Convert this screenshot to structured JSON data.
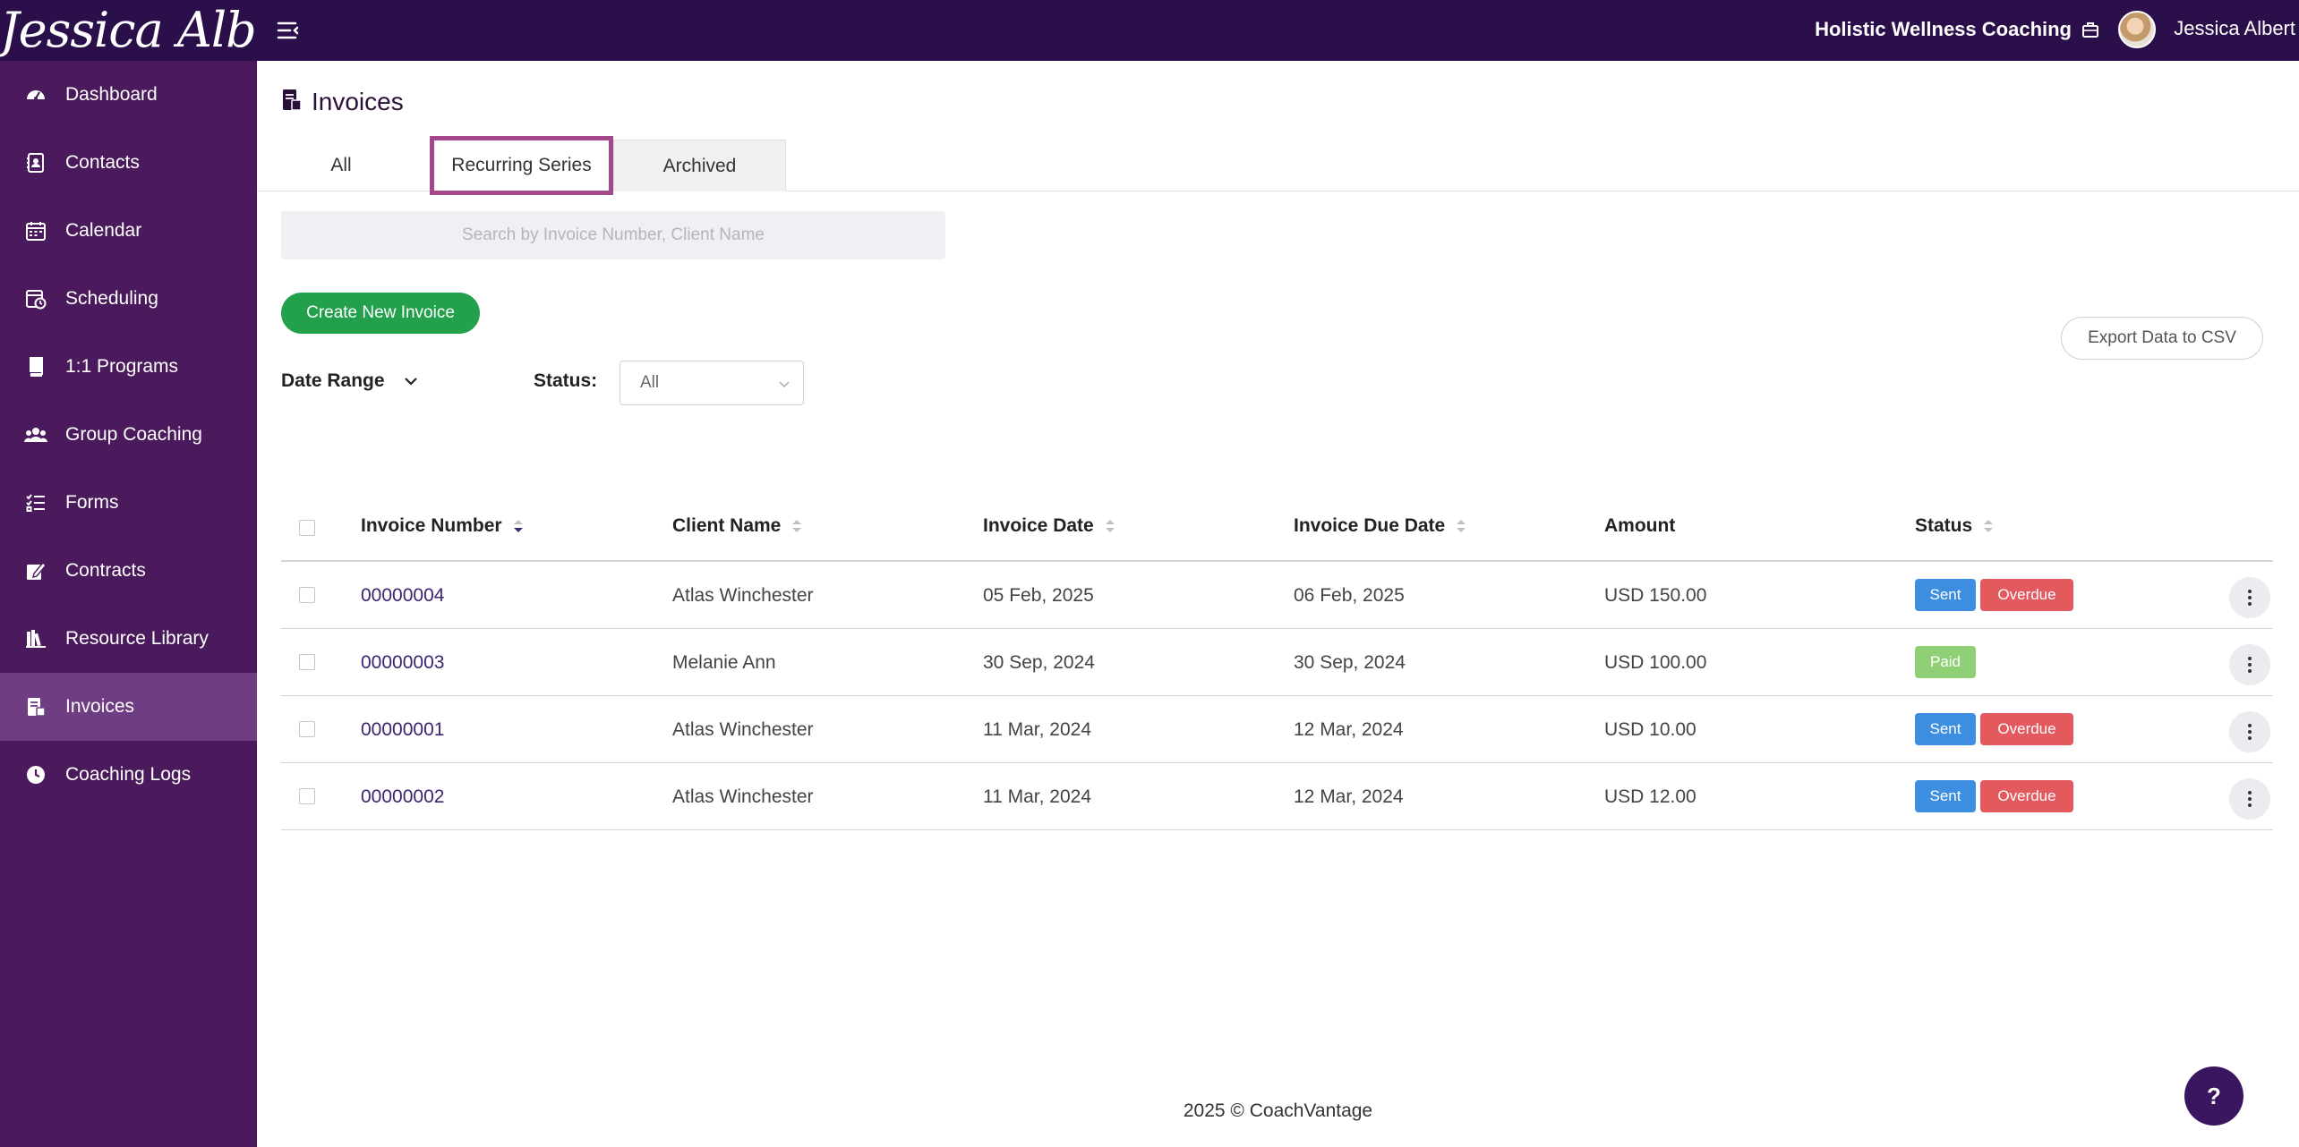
{
  "topbar": {
    "logo_text": "Jessica Albert",
    "business_name": "Holistic Wellness Coaching",
    "user_name": "Jessica Albert"
  },
  "sidebar": {
    "items": [
      {
        "label": "Dashboard",
        "icon": "dashboard-gauge-icon"
      },
      {
        "label": "Contacts",
        "icon": "contact-book-icon"
      },
      {
        "label": "Calendar",
        "icon": "calendar-icon"
      },
      {
        "label": "Scheduling",
        "icon": "scheduling-calendar-clock-icon"
      },
      {
        "label": "1:1 Programs",
        "icon": "book-icon"
      },
      {
        "label": "Group Coaching",
        "icon": "users-group-icon"
      },
      {
        "label": "Forms",
        "icon": "checklist-icon"
      },
      {
        "label": "Contracts",
        "icon": "contract-sign-icon"
      },
      {
        "label": "Resource Library",
        "icon": "library-books-icon"
      },
      {
        "label": "Invoices",
        "icon": "invoice-icon",
        "active": true
      },
      {
        "label": "Coaching Logs",
        "icon": "clock-icon"
      }
    ]
  },
  "page": {
    "title": "Invoices",
    "tabs": {
      "all": "All",
      "recurring": "Recurring Series",
      "archived": "Archived"
    },
    "search_placeholder": "Search by Invoice Number, Client Name",
    "create_button": "Create New Invoice",
    "export_button": "Export Data to CSV",
    "date_range_label": "Date Range",
    "status_label": "Status:",
    "status_value": "All"
  },
  "table": {
    "headers": {
      "invoice_number": "Invoice Number",
      "client_name": "Client Name",
      "invoice_date": "Invoice Date",
      "due_date": "Invoice Due Date",
      "amount": "Amount",
      "status": "Status"
    },
    "rows": [
      {
        "number": "00000004",
        "client": "Atlas Winchester",
        "date": "05 Feb, 2025",
        "due": "06 Feb, 2025",
        "amount": "USD 150.00",
        "badges": [
          "Sent",
          "Overdue"
        ]
      },
      {
        "number": "00000003",
        "client": "Melanie Ann",
        "date": "30 Sep, 2024",
        "due": "30 Sep, 2024",
        "amount": "USD 100.00",
        "badges": [
          "Paid"
        ]
      },
      {
        "number": "00000001",
        "client": "Atlas Winchester",
        "date": "11 Mar, 2024",
        "due": "12 Mar, 2024",
        "amount": "USD 10.00",
        "badges": [
          "Sent",
          "Overdue"
        ]
      },
      {
        "number": "00000002",
        "client": "Atlas Winchester",
        "date": "11 Mar, 2024",
        "due": "12 Mar, 2024",
        "amount": "USD 12.00",
        "badges": [
          "Sent",
          "Overdue"
        ]
      }
    ]
  },
  "footer": {
    "text": "2025 © CoachVantage"
  },
  "help": {
    "label": "?"
  },
  "colors": {
    "topbar": "#2a0f4a",
    "sidebar": "#4a1a5c",
    "sidebar_active": "#6e3d82",
    "accent_green": "#22a04c",
    "sent": "#3d8ee0",
    "overdue": "#e2595e",
    "paid": "#8fd076",
    "tab_highlight": "#a4488c"
  }
}
